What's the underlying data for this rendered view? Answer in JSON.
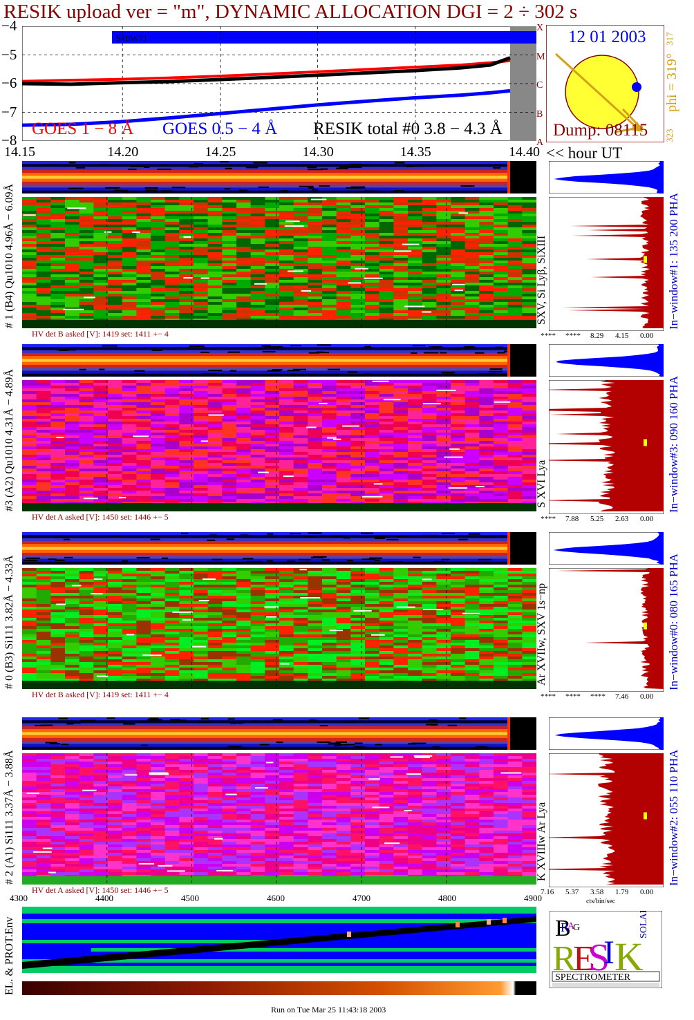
{
  "title": "RESIK upload ver = \"m\", DYNAMIC ALLOCATION  DGI =   2 ÷ 302 s",
  "colors": {
    "title": "#8b0000",
    "goes_long": "#ff0000",
    "goes_short": "#0000ff",
    "resik": "#000000",
    "orange": "#d4a017",
    "sun": "#ffff33",
    "blue_bar": "#0000ff"
  },
  "lightcurve": {
    "yticks": [
      "−4",
      "−5",
      "−6",
      "−7",
      "−8"
    ],
    "class_letters": [
      "X",
      "M",
      "C",
      "B",
      "A"
    ],
    "bar_label": "S10W71",
    "legend_goes_long": "GOES 1 − 8 Å",
    "legend_goes_short": "GOES 0.5 − 4 Å",
    "legend_resik": "RESIK total #0  3.8 − 4.3 Å"
  },
  "sun_panel": {
    "date": "12 01 2003",
    "dump": "Dump: 08115",
    "phi": "phi = 319°",
    "phi_small": "317",
    "bottom_num": "323"
  },
  "time_axis": {
    "ticks": [
      "14.15",
      "14.20",
      "14.25",
      "14.30",
      "14.35",
      "14.40"
    ],
    "unit_label": "<< hour UT"
  },
  "channels": [
    {
      "id": "ch1",
      "label": "# 1 (B4) Qu1010 4.96Å − 6.09Å",
      "lines": "SXV, Si Lyβ, SiXIII",
      "hv": "HV det B asked [V]:  1419 set:  1411  +−    4",
      "window": "In−window#1:  135 200 PHA",
      "pha_ticks": [
        "****",
        "****",
        "8.29",
        "4.15",
        "0.00"
      ]
    },
    {
      "id": "ch3",
      "label": "#3 (A2) Qu1010  4.31Å − 4.89Å",
      "lines": "S XVI Lya",
      "hv": "HV det A asked [V]:  1450 set:  1446  +−    5",
      "window": "In−window#3:  090 160 PHA",
      "pha_ticks": [
        "****",
        "7.88",
        "5.25",
        "2.63",
        "0.00"
      ]
    },
    {
      "id": "ch0",
      "label": "# 0 (B3) Si111  3.82Å − 4.33Å",
      "lines": "Ar XVIIw,  SXV 1s−np",
      "hv": "HV det B asked [V]:  1419 set:  1411  +−    4",
      "window": "In−window#0:  080 165 PHA",
      "pha_ticks": [
        "****",
        "****",
        "****",
        "7.46",
        "0.00"
      ]
    },
    {
      "id": "ch2",
      "label": "# 2 (A1) Si111  3.37Å − 3.88Å",
      "lines": "K XVIIIw  Ar Lya",
      "hv": "HV det A asked [V]:  1450 set:  1446  +−    5",
      "window": "In−window#2:  055 110 PHA",
      "pha_ticks": [
        "7.16",
        "5.37",
        "3.58",
        "1.79",
        "0.00"
      ],
      "pha_unit": "cts/bin/sec"
    }
  ],
  "env": {
    "xticks": [
      "4300",
      "4400",
      "4500",
      "4600",
      "4700",
      "4800",
      "4900"
    ],
    "label": "EL. & PROT.Env"
  },
  "logo": {
    "text": "SPECTROMETER",
    "letters": [
      "B",
      "R",
      "A",
      "G",
      "S",
      "O",
      "L",
      "A",
      "R",
      "R",
      "E",
      "S",
      "I",
      "K"
    ]
  },
  "footer": "Run on Tue Mar 25 11:43:18 2003",
  "chart_data": {
    "type": "line",
    "title": "RESIK upload ver = \"m\", DYNAMIC ALLOCATION  DGI =   2 ÷ 302 s",
    "xlabel": "hour UT",
    "ylabel": "",
    "xlim": [
      14.15,
      14.4
    ],
    "ylim": [
      -8,
      -4
    ],
    "x": [
      14.15,
      14.175,
      14.2,
      14.225,
      14.25,
      14.275,
      14.3,
      14.325,
      14.35,
      14.375,
      14.39,
      14.4
    ],
    "series": [
      {
        "name": "GOES 1 − 8 Å",
        "values": [
          -5.92,
          -5.88,
          -5.85,
          -5.8,
          -5.74,
          -5.67,
          -5.59,
          -5.51,
          -5.43,
          -5.35,
          -5.27,
          -5.2
        ]
      },
      {
        "name": "GOES 0.5 − 4 Å",
        "values": [
          -7.45,
          -7.42,
          -7.33,
          -7.2,
          -7.05,
          -6.9,
          -6.75,
          -6.62,
          -6.5,
          -6.4,
          -6.32,
          -6.25
        ]
      },
      {
        "name": "RESIK total #0  3.8 − 4.3 Å",
        "values": [
          -6.0,
          -6.02,
          -5.97,
          -5.93,
          -5.86,
          -5.79,
          -5.71,
          -5.63,
          -5.55,
          -5.45,
          -5.35,
          -5.1
        ]
      }
    ]
  }
}
